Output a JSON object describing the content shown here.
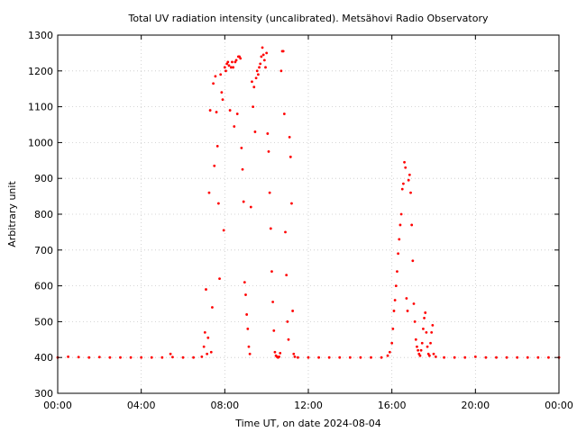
{
  "chart_data": {
    "type": "scatter",
    "title": "Total UV radiation intensity (uncalibrated). Metsähovi Radio Observatory",
    "xlabel": "Time UT, on date 2024-08-04",
    "ylabel": "Arbitrary unit",
    "xlim": [
      0,
      24
    ],
    "ylim": [
      300,
      1300
    ],
    "x_ticks": [
      0,
      4,
      8,
      12,
      16,
      20,
      24
    ],
    "x_tick_labels": [
      "00:00",
      "04:00",
      "08:00",
      "12:00",
      "16:00",
      "20:00",
      "00:00"
    ],
    "y_ticks": [
      300,
      400,
      500,
      600,
      700,
      800,
      900,
      1000,
      1100,
      1200,
      1300
    ],
    "y_tick_labels": [
      "300",
      "400",
      "500",
      "600",
      "700",
      "800",
      "900",
      "1000",
      "1100",
      "1200",
      "1300"
    ],
    "grid": true,
    "marker_color": "#ff0000",
    "series": [
      {
        "points": [
          [
            0.0,
            400
          ],
          [
            0.5,
            402
          ],
          [
            1.0,
            401
          ],
          [
            1.5,
            400
          ],
          [
            2.0,
            401
          ],
          [
            2.5,
            400
          ],
          [
            3.0,
            400
          ],
          [
            3.5,
            400
          ],
          [
            4.0,
            400
          ],
          [
            4.5,
            400
          ],
          [
            5.0,
            400
          ],
          [
            5.4,
            410
          ],
          [
            5.5,
            401
          ],
          [
            6.0,
            400
          ],
          [
            6.5,
            400
          ],
          [
            6.9,
            402
          ],
          [
            7.0,
            430
          ],
          [
            7.05,
            470
          ],
          [
            7.1,
            590
          ],
          [
            7.15,
            410
          ],
          [
            7.2,
            455
          ],
          [
            7.25,
            860
          ],
          [
            7.3,
            1090
          ],
          [
            7.35,
            415
          ],
          [
            7.4,
            540
          ],
          [
            7.45,
            1165
          ],
          [
            7.5,
            935
          ],
          [
            7.55,
            1185
          ],
          [
            7.6,
            1085
          ],
          [
            7.65,
            990
          ],
          [
            7.7,
            830
          ],
          [
            7.75,
            620
          ],
          [
            7.8,
            1190
          ],
          [
            7.85,
            1140
          ],
          [
            7.9,
            1120
          ],
          [
            7.95,
            755
          ],
          [
            8.0,
            1210
          ],
          [
            8.05,
            1200
          ],
          [
            8.1,
            1220
          ],
          [
            8.15,
            1225
          ],
          [
            8.2,
            1215
          ],
          [
            8.25,
            1090
          ],
          [
            8.3,
            1210
          ],
          [
            8.35,
            1225
          ],
          [
            8.4,
            1210
          ],
          [
            8.45,
            1045
          ],
          [
            8.5,
            1225
          ],
          [
            8.55,
            1230
          ],
          [
            8.6,
            1080
          ],
          [
            8.65,
            1240
          ],
          [
            8.7,
            1240
          ],
          [
            8.75,
            1235
          ],
          [
            8.8,
            985
          ],
          [
            8.85,
            925
          ],
          [
            8.9,
            835
          ],
          [
            8.95,
            610
          ],
          [
            9.0,
            575
          ],
          [
            9.05,
            520
          ],
          [
            9.1,
            480
          ],
          [
            9.15,
            430
          ],
          [
            9.2,
            410
          ],
          [
            9.25,
            820
          ],
          [
            9.3,
            1170
          ],
          [
            9.35,
            1100
          ],
          [
            9.4,
            1155
          ],
          [
            9.45,
            1030
          ],
          [
            9.5,
            1180
          ],
          [
            9.55,
            1200
          ],
          [
            9.6,
            1190
          ],
          [
            9.65,
            1210
          ],
          [
            9.7,
            1220
          ],
          [
            9.75,
            1240
          ],
          [
            9.8,
            1265
          ],
          [
            9.85,
            1245
          ],
          [
            9.9,
            1230
          ],
          [
            9.95,
            1210
          ],
          [
            10.0,
            1250
          ],
          [
            10.05,
            1025
          ],
          [
            10.1,
            975
          ],
          [
            10.15,
            860
          ],
          [
            10.2,
            760
          ],
          [
            10.25,
            640
          ],
          [
            10.3,
            555
          ],
          [
            10.35,
            475
          ],
          [
            10.4,
            415
          ],
          [
            10.45,
            405
          ],
          [
            10.5,
            402
          ],
          [
            10.55,
            400
          ],
          [
            10.6,
            402
          ],
          [
            10.65,
            412
          ],
          [
            10.7,
            1200
          ],
          [
            10.75,
            1255
          ],
          [
            10.8,
            1255
          ],
          [
            10.85,
            1080
          ],
          [
            10.9,
            750
          ],
          [
            10.95,
            630
          ],
          [
            11.0,
            500
          ],
          [
            11.05,
            450
          ],
          [
            11.1,
            1015
          ],
          [
            11.15,
            960
          ],
          [
            11.2,
            830
          ],
          [
            11.25,
            530
          ],
          [
            11.3,
            410
          ],
          [
            11.35,
            402
          ],
          [
            11.5,
            400
          ],
          [
            12.0,
            400
          ],
          [
            12.5,
            400
          ],
          [
            13.0,
            400
          ],
          [
            13.5,
            400
          ],
          [
            14.0,
            400
          ],
          [
            14.5,
            400
          ],
          [
            15.0,
            400
          ],
          [
            15.5,
            400
          ],
          [
            15.8,
            405
          ],
          [
            15.9,
            415
          ],
          [
            16.0,
            440
          ],
          [
            16.05,
            480
          ],
          [
            16.1,
            530
          ],
          [
            16.15,
            560
          ],
          [
            16.2,
            600
          ],
          [
            16.25,
            640
          ],
          [
            16.3,
            690
          ],
          [
            16.35,
            730
          ],
          [
            16.4,
            770
          ],
          [
            16.45,
            800
          ],
          [
            16.5,
            870
          ],
          [
            16.55,
            885
          ],
          [
            16.6,
            945
          ],
          [
            16.65,
            930
          ],
          [
            16.7,
            565
          ],
          [
            16.75,
            530
          ],
          [
            16.8,
            895
          ],
          [
            16.85,
            910
          ],
          [
            16.9,
            860
          ],
          [
            16.95,
            770
          ],
          [
            17.0,
            670
          ],
          [
            17.05,
            550
          ],
          [
            17.1,
            500
          ],
          [
            17.15,
            450
          ],
          [
            17.2,
            430
          ],
          [
            17.25,
            420
          ],
          [
            17.3,
            410
          ],
          [
            17.35,
            405
          ],
          [
            17.4,
            420
          ],
          [
            17.45,
            440
          ],
          [
            17.5,
            480
          ],
          [
            17.55,
            510
          ],
          [
            17.6,
            525
          ],
          [
            17.65,
            470
          ],
          [
            17.7,
            430
          ],
          [
            17.75,
            410
          ],
          [
            17.8,
            405
          ],
          [
            17.85,
            440
          ],
          [
            17.9,
            470
          ],
          [
            17.95,
            490
          ],
          [
            18.0,
            410
          ],
          [
            18.1,
            402
          ],
          [
            18.5,
            400
          ],
          [
            19.0,
            400
          ],
          [
            19.5,
            400
          ],
          [
            20.0,
            402
          ],
          [
            20.5,
            400
          ],
          [
            21.0,
            400
          ],
          [
            21.5,
            400
          ],
          [
            22.0,
            400
          ],
          [
            22.5,
            400
          ],
          [
            23.0,
            400
          ],
          [
            23.5,
            400
          ],
          [
            24.0,
            400
          ]
        ]
      }
    ]
  }
}
